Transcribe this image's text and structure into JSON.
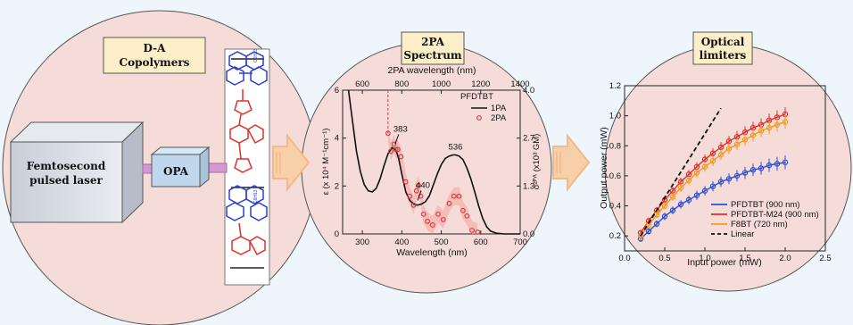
{
  "panels": {
    "left": {
      "title_line1": "D-A",
      "title_line2": "Copolymers",
      "box_line1": "Femtosecond",
      "box_line2": "pulsed laser",
      "opa": "OPA"
    },
    "middle": {
      "title_line1": "2PA",
      "title_line2": "Spectrum"
    },
    "right": {
      "title_line1": "Optical",
      "title_line2": "limiters"
    }
  },
  "colors": {
    "circle_fill": "#f6dcd8",
    "panel_bg": "#eef6fb",
    "label_box": "#fbeec8",
    "arrow": "#f2b98a",
    "pfdtbt": "#2b4fd6",
    "m24": "#e0302a",
    "f8bt": "#f29a1f",
    "twopa": "#e03a3a"
  },
  "chart_data": [
    {
      "type": "line",
      "title": "",
      "top_axis_label": "2PA wavelength (nm)",
      "top_ticks": [
        600,
        800,
        1000,
        1200,
        1400
      ],
      "xlabel": "Wavelength (nm)",
      "xlim": [
        250,
        700
      ],
      "x_ticks": [
        300,
        400,
        500,
        600,
        700
      ],
      "ylabel_left": "ε (x 10⁴ M⁻¹cm⁻¹)",
      "ylim_left": [
        0,
        6
      ],
      "left_ticks": [
        0,
        2,
        4,
        6
      ],
      "ylabel_right": "σ²ᴾᴬ (x10³ GM)",
      "ylim_right": [
        0,
        4
      ],
      "right_ticks": [
        "0.0",
        "1.3",
        "2.7",
        "4.0"
      ],
      "legend_title": "PFDTBT",
      "series": [
        {
          "name": "1PA",
          "x": [
            265,
            275,
            285,
            295,
            305,
            315,
            325,
            335,
            345,
            355,
            365,
            375,
            385,
            392,
            400,
            410,
            420,
            430,
            440,
            450,
            460,
            470,
            480,
            490,
            500,
            510,
            520,
            530,
            536,
            545,
            555,
            565,
            575,
            585,
            595,
            605,
            615,
            625,
            640,
            660,
            680,
            700
          ],
          "y": [
            6.0,
            4.7,
            3.45,
            2.6,
            2.05,
            1.8,
            1.75,
            1.9,
            2.3,
            2.85,
            3.35,
            3.6,
            3.5,
            3.15,
            2.5,
            1.75,
            1.4,
            1.25,
            1.2,
            1.25,
            1.35,
            1.6,
            2.05,
            2.5,
            2.9,
            3.15,
            3.25,
            3.3,
            3.3,
            3.25,
            3.1,
            2.75,
            2.3,
            1.75,
            1.15,
            0.65,
            0.3,
            0.12,
            0.03,
            0,
            0,
            0
          ]
        },
        {
          "name": "2PA",
          "x": [
            365,
            372,
            380,
            385,
            390,
            398,
            410,
            420,
            430,
            437,
            442,
            448,
            455,
            465,
            478,
            492,
            505,
            520,
            532,
            545,
            555,
            565,
            578,
            592
          ],
          "y": [
            2.8,
            2.3,
            2.5,
            2.35,
            2.35,
            2.15,
            1.45,
            1.05,
            0.8,
            1.2,
            1.35,
            1.05,
            0.55,
            0.35,
            0.25,
            0.55,
            0.4,
            0.85,
            1.05,
            1.05,
            0.65,
            0.5,
            0.1,
            0.05
          ]
        }
      ],
      "annotations": [
        {
          "text": "383",
          "x": 383,
          "y": 3.6
        },
        {
          "text": "440",
          "x": 440,
          "y": 1.25
        },
        {
          "text": "536",
          "x": 536,
          "y": 3.3
        }
      ]
    },
    {
      "type": "scatter",
      "title": "",
      "xlabel": "Input power (mW)",
      "ylabel": "Output power (mW)",
      "xlim": [
        0,
        2.5
      ],
      "ylim": [
        0.1,
        1.2
      ],
      "x_ticks": [
        "0.0",
        "0.5",
        "1.0",
        "1.5",
        "2.0",
        "2.5"
      ],
      "y_ticks": [
        "0.2",
        "0.4",
        "0.6",
        "0.8",
        "1.0",
        "1.2"
      ],
      "legend_position": "bottom-right",
      "series": [
        {
          "name": "PFDTBT (900 nm)",
          "x": [
            0.2,
            0.3,
            0.4,
            0.5,
            0.6,
            0.7,
            0.8,
            0.9,
            1.0,
            1.1,
            1.2,
            1.3,
            1.4,
            1.5,
            1.6,
            1.7,
            1.8,
            1.9,
            2.0
          ],
          "y": [
            0.18,
            0.23,
            0.28,
            0.33,
            0.37,
            0.41,
            0.44,
            0.47,
            0.5,
            0.53,
            0.56,
            0.58,
            0.6,
            0.62,
            0.64,
            0.65,
            0.67,
            0.68,
            0.69
          ]
        },
        {
          "name": "PFDTBT-M24 (900 nm)",
          "x": [
            0.2,
            0.3,
            0.4,
            0.5,
            0.6,
            0.7,
            0.8,
            0.9,
            1.0,
            1.1,
            1.2,
            1.3,
            1.4,
            1.5,
            1.6,
            1.7,
            1.8,
            1.9,
            2.0
          ],
          "y": [
            0.22,
            0.3,
            0.37,
            0.44,
            0.5,
            0.56,
            0.61,
            0.66,
            0.71,
            0.75,
            0.79,
            0.83,
            0.86,
            0.89,
            0.92,
            0.94,
            0.97,
            0.99,
            1.01
          ]
        },
        {
          "name": "F8BT (720 nm)",
          "x": [
            0.2,
            0.3,
            0.4,
            0.5,
            0.6,
            0.7,
            0.8,
            0.9,
            1.0,
            1.1,
            1.2,
            1.3,
            1.4,
            1.5,
            1.6,
            1.7,
            1.8,
            1.9,
            2.0
          ],
          "y": [
            0.2,
            0.27,
            0.34,
            0.4,
            0.46,
            0.52,
            0.57,
            0.62,
            0.66,
            0.7,
            0.74,
            0.78,
            0.81,
            0.84,
            0.87,
            0.9,
            0.92,
            0.94,
            0.96
          ]
        },
        {
          "name": "Linear",
          "x": [
            0.2,
            1.2
          ],
          "y": [
            0.2,
            1.05
          ]
        }
      ]
    }
  ]
}
